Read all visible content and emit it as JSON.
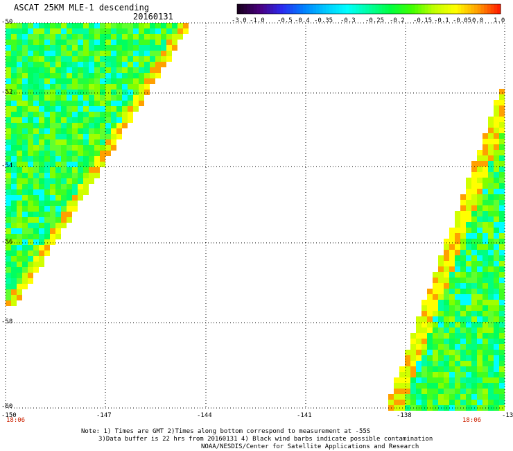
{
  "header": {
    "title": "ASCAT 25KM MLE-1 descending",
    "date": "20160131"
  },
  "colorbar": {
    "ticks": [
      "-3.0",
      "-1.0",
      "-0.5",
      "-0.4",
      "-0.35",
      "-0.3",
      "-0.25",
      "-0.2",
      "-0.15",
      "-0.1",
      "-0.05",
      "0.0",
      "1.0"
    ],
    "colors": [
      "#1a0020",
      "#4a0080",
      "#2a2af0",
      "#0080ff",
      "#00c8ff",
      "#00ffff",
      "#00ffa0",
      "#00ff40",
      "#40ff00",
      "#c0ff00",
      "#ffff00",
      "#ffa000",
      "#ff2000"
    ]
  },
  "axes": {
    "lat_labels": [
      "-50",
      "-52",
      "-54",
      "-56",
      "-58",
      "-60"
    ],
    "lon_labels": [
      "-150",
      "-147",
      "-144",
      "-141",
      "-138",
      "-13"
    ]
  },
  "swath_times": {
    "left": "18:06",
    "right": "18:06"
  },
  "notes": [
    "Note: 1) Times are GMT 2)Times along bottom correspond to measurement at -55S",
    "3)Data buffer is 22 hrs from 20160131 4) Black wind barbs indicate possible contamination",
    "NOAA/NESDIS/Center for Satellite Applications and Research"
  ]
}
